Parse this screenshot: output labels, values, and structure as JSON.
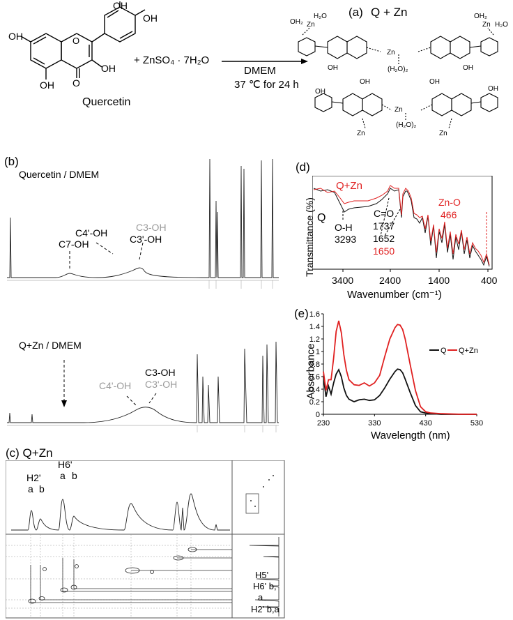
{
  "panel_a": {
    "label": "(a)",
    "title": "Q + Zn",
    "reagent": "+ ZnSO₄ · 7H₂O",
    "arrow_top": "DMEM",
    "arrow_bottom": "37 ℃ for 24 h",
    "compound_name": "Quercetin",
    "atoms": {
      "oh": "OH",
      "o": "O",
      "zn": "Zn",
      "h2o": "H₂O",
      "oh2": "OH₂",
      "h2o2": "(H₂O)₂"
    }
  },
  "panel_b": {
    "label": "(b)",
    "spectrum1_title": "Quercetin / DMEM",
    "spectrum1_labels": {
      "c7": "C7-OH",
      "c4p": "C4'-OH",
      "c3_gray": "C3-OH",
      "c3p": "C3'-OH"
    },
    "spectrum2_title": "Q+Zn / DMEM",
    "spectrum2_labels": {
      "c3": "C3-OH",
      "c4p_gray": "C4'-OH",
      "c3p_gray": "C3'-OH"
    }
  },
  "panel_c": {
    "label": "(c) Q+Zn",
    "labels": {
      "h2": "H2'",
      "h6": "H6'",
      "a": "a",
      "b": "b",
      "h5": "H5'",
      "h6ba": "H6' b,",
      "h6a": "a",
      "h2ba": "H2' b,a"
    }
  },
  "panel_d": {
    "label": "(d)",
    "ylabel": "Transmittance (%)",
    "xlabel": "Wavenumber (cm⁻¹)",
    "xticks": [
      "3400",
      "2400",
      "1400",
      "400"
    ],
    "legend_qzn": "Q+Zn",
    "legend_q": "Q",
    "annotations": {
      "oh": "O-H",
      "oh_val": "3293",
      "co": "C=O",
      "co_1": "1737",
      "co_2": "1652",
      "co_3": "1650",
      "zno": "Zn-O",
      "zno_val": "466"
    }
  },
  "panel_e": {
    "label": "(e)"
  },
  "colors": {
    "q": "#111111",
    "qzn": "#e02020",
    "gray_label": "#9a9a9a"
  },
  "chart_data": [
    {
      "type": "line",
      "title": "",
      "xlabel": "Wavelength (nm)",
      "ylabel": "Absorbance",
      "xlim": [
        230,
        530
      ],
      "ylim": [
        0,
        1.6
      ],
      "xticks": [
        230,
        330,
        430,
        530
      ],
      "yticks": [
        0,
        0.2,
        0.4,
        0.6,
        0.8,
        1,
        1.2,
        1.4,
        1.6
      ],
      "ytick_labels": [
        "0",
        "0.2",
        "0.4",
        "0.6",
        "0.8",
        "1",
        "1.2",
        "1.4",
        "1.6"
      ],
      "legend_position": "top-right",
      "series": [
        {
          "name": "Q",
          "color": "#111111",
          "x": [
            230,
            235,
            240,
            245,
            250,
            255,
            260,
            265,
            270,
            275,
            280,
            290,
            300,
            310,
            320,
            330,
            340,
            350,
            360,
            370,
            375,
            380,
            385,
            390,
            400,
            410,
            420,
            430,
            440,
            460,
            500,
            530
          ],
          "y": [
            0.6,
            0.28,
            0.45,
            0.32,
            0.5,
            0.64,
            0.71,
            0.6,
            0.42,
            0.3,
            0.24,
            0.2,
            0.23,
            0.24,
            0.22,
            0.23,
            0.3,
            0.42,
            0.56,
            0.68,
            0.72,
            0.71,
            0.66,
            0.56,
            0.34,
            0.14,
            0.04,
            0.02,
            0.01,
            0.0,
            0.0,
            0.0
          ]
        },
        {
          "name": "Q+Zn",
          "color": "#e02020",
          "x": [
            230,
            235,
            240,
            245,
            250,
            255,
            260,
            265,
            270,
            275,
            280,
            290,
            300,
            310,
            320,
            330,
            340,
            350,
            360,
            370,
            375,
            380,
            385,
            390,
            400,
            410,
            420,
            430,
            440,
            460,
            500,
            530
          ],
          "y": [
            0.68,
            0.38,
            0.55,
            0.55,
            0.9,
            1.32,
            1.49,
            1.3,
            0.95,
            0.7,
            0.55,
            0.47,
            0.46,
            0.5,
            0.45,
            0.5,
            0.62,
            0.92,
            1.2,
            1.38,
            1.43,
            1.42,
            1.35,
            1.2,
            0.78,
            0.38,
            0.12,
            0.04,
            0.02,
            0.01,
            0.0,
            0.0
          ]
        }
      ]
    }
  ]
}
